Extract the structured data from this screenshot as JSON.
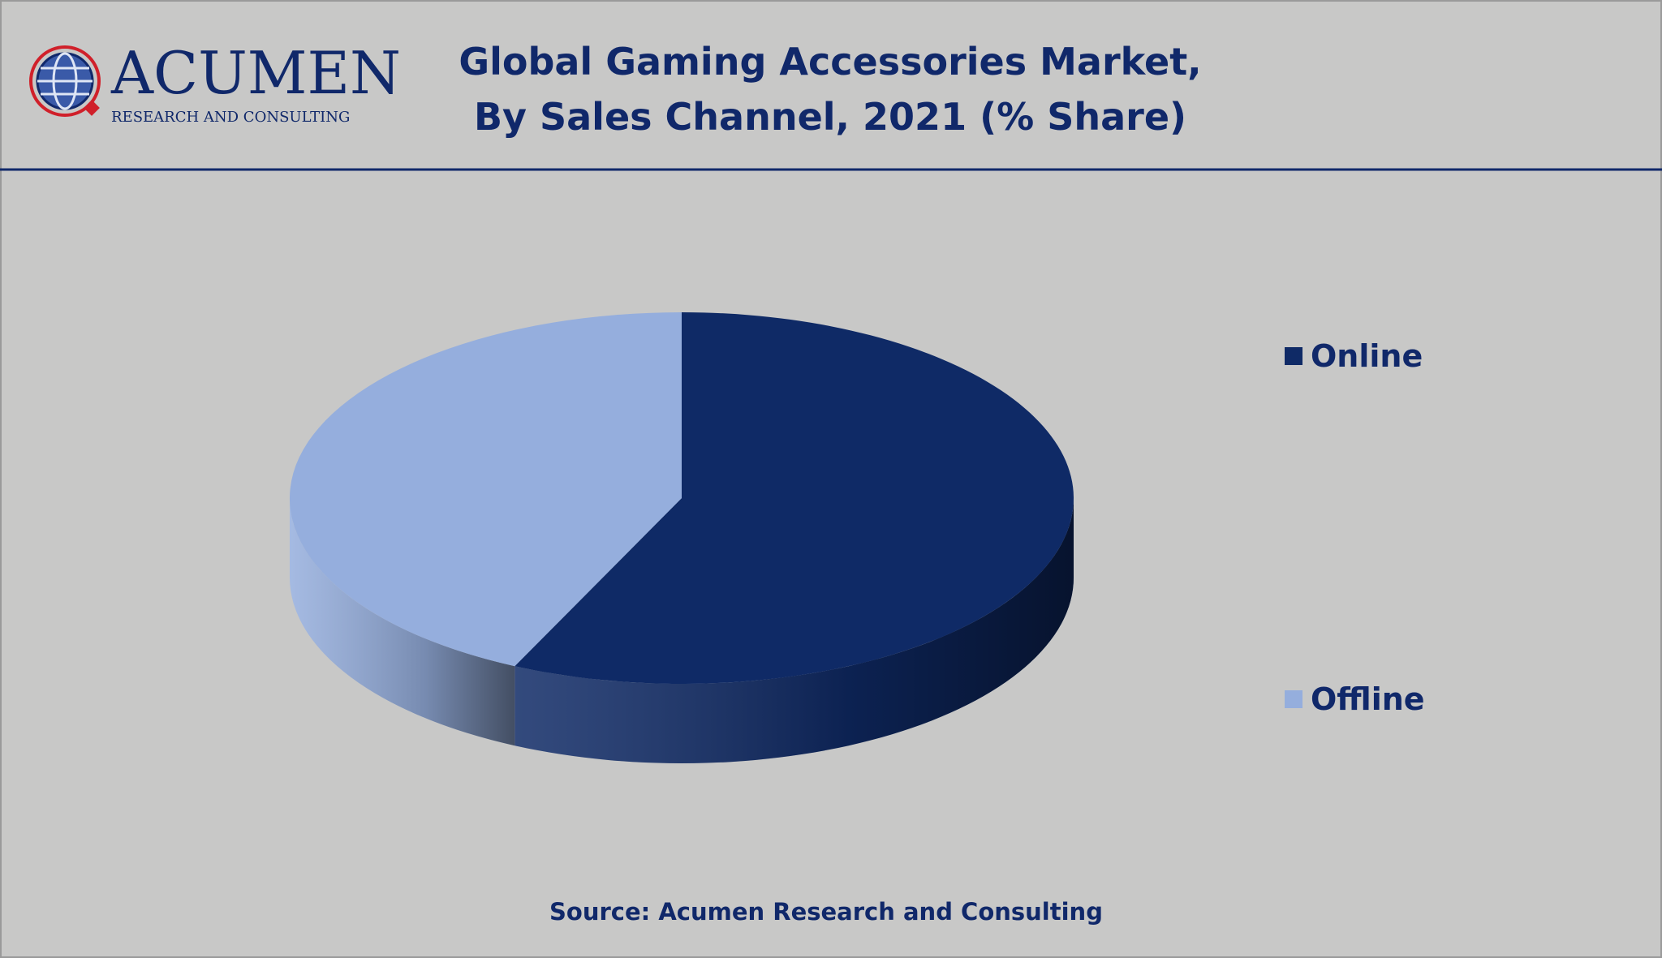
{
  "logo": {
    "name": "ACUMEN",
    "tagline": "RESEARCH AND CONSULTING"
  },
  "chart_data": {
    "type": "pie",
    "title": [
      "Global Gaming Accessories Market,",
      "By Sales Channel, 2021 (% Share)"
    ],
    "categories": [
      "Online",
      "Offline"
    ],
    "values": [
      57,
      43
    ],
    "colors": [
      "#0f2a66",
      "#95aedd"
    ],
    "legend": "right",
    "source": "Source: Acumen Research and Consulting"
  }
}
